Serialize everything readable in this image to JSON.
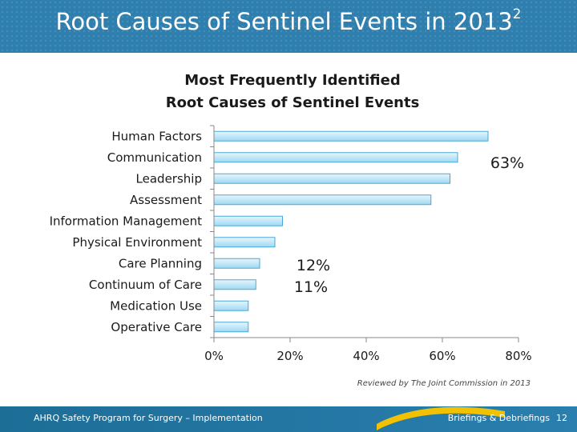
{
  "slide": {
    "title": "Root Causes of Sentinel Events in 2013",
    "title_superscript": "2",
    "chart_title_line1": "Most Frequently Identified",
    "chart_title_line2": "Root Causes of Sentinel Events",
    "note": "Reviewed by The Joint Commission in 2013",
    "footer_left": "AHRQ Safety Program for Surgery – Implementation",
    "footer_right": "Briefings & Debriefings",
    "page_number": "12"
  },
  "colors": {
    "title_bar": "#2f7fae",
    "bar_fill_light": "#e6f6fd",
    "bar_fill_dark": "#9fd8f1",
    "bar_stroke": "#4aa8d6",
    "swoosh": "#f2c200"
  },
  "chart_data": {
    "type": "bar",
    "orientation": "horizontal",
    "title": "Most Frequently Identified Root Causes of Sentinel Events",
    "categories": [
      "Human Factors",
      "Communication",
      "Leadership",
      "Assessment",
      "Information Management",
      "Physical Environment",
      "Care Planning",
      "Continuum of Care",
      "Medication Use",
      "Operative Care"
    ],
    "values": [
      72,
      64,
      62,
      57,
      18,
      16,
      12,
      11,
      9,
      9
    ],
    "xlim": [
      0,
      80
    ],
    "xticks": [
      "0%",
      "20%",
      "40%",
      "60%",
      "80%"
    ],
    "annotations": [
      "63%",
      "12%",
      "11%"
    ],
    "grid": false
  }
}
